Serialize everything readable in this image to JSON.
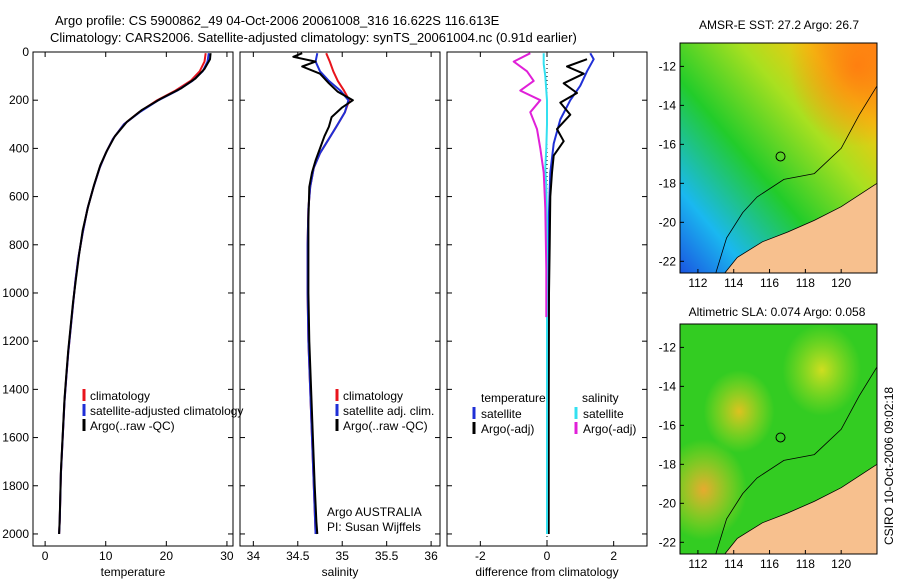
{
  "header": {
    "line1": "Argo profile: CS 5900862_49 04-Oct-2006 20061008_316 16.622S 116.613E",
    "line2": "Climatology: CARS2006. Satellite-adjusted climatology: synTS_20061004.nc (0.91d earlier)"
  },
  "side_note": "CSIRO 10-Oct-2006 09:02:18",
  "colors": {
    "red": "#e8141c",
    "blue": "#1f2fd6",
    "black": "#000000",
    "cyan": "#33e0f0",
    "magenta": "#e020d8",
    "land": "#f7c08e",
    "marker": "#000000"
  },
  "chart_data": [
    {
      "id": "temperature",
      "type": "line",
      "xlabel": "temperature",
      "xlim": [
        -2,
        31
      ],
      "ylim": [
        2050,
        0
      ],
      "xticks": [
        0,
        10,
        20,
        30
      ],
      "yticks": [
        0,
        200,
        400,
        600,
        800,
        1000,
        1200,
        1400,
        1600,
        1800,
        2000
      ],
      "legend": [
        "climatology",
        "satellite-adjusted climatology",
        "Argo(..raw -QC)"
      ],
      "series": [
        {
          "name": "climatology",
          "color": "red",
          "points": [
            [
              26.5,
              5
            ],
            [
              26.3,
              40
            ],
            [
              25.5,
              80
            ],
            [
              24,
              120
            ],
            [
              21.5,
              160
            ],
            [
              18.5,
              200
            ],
            [
              15.5,
              250
            ],
            [
              13,
              300
            ],
            [
              11.2,
              360
            ],
            [
              10,
              420
            ],
            [
              9,
              480
            ],
            [
              8,
              560
            ],
            [
              7,
              650
            ],
            [
              6.2,
              750
            ],
            [
              5.5,
              850
            ],
            [
              5,
              950
            ],
            [
              4.6,
              1050
            ],
            [
              4.2,
              1150
            ],
            [
              3.8,
              1250
            ],
            [
              3.5,
              1350
            ],
            [
              3.2,
              1450
            ],
            [
              3,
              1550
            ],
            [
              2.8,
              1650
            ],
            [
              2.6,
              1750
            ],
            [
              2.5,
              1850
            ],
            [
              2.4,
              1950
            ],
            [
              2.3,
              2000
            ]
          ]
        },
        {
          "name": "satellite-adjusted climatology",
          "color": "blue",
          "points": [
            [
              27,
              5
            ],
            [
              26.8,
              40
            ],
            [
              26,
              80
            ],
            [
              24.3,
              120
            ],
            [
              21.8,
              160
            ],
            [
              18.7,
              200
            ],
            [
              15.6,
              250
            ],
            [
              13,
              300
            ],
            [
              11.2,
              360
            ],
            [
              10,
              420
            ],
            [
              9,
              480
            ],
            [
              8,
              560
            ],
            [
              7,
              650
            ],
            [
              6.2,
              750
            ],
            [
              5.5,
              850
            ],
            [
              5,
              950
            ],
            [
              4.6,
              1050
            ],
            [
              4.2,
              1150
            ],
            [
              3.8,
              1250
            ],
            [
              3.5,
              1350
            ],
            [
              3.2,
              1450
            ],
            [
              3,
              1550
            ],
            [
              2.8,
              1650
            ],
            [
              2.6,
              1750
            ],
            [
              2.5,
              1850
            ],
            [
              2.4,
              1950
            ],
            [
              2.3,
              2000
            ]
          ]
        },
        {
          "name": "Argo(..raw -QC)",
          "color": "black",
          "points": [
            [
              27.3,
              5
            ],
            [
              27.2,
              30
            ],
            [
              26.3,
              70
            ],
            [
              24.8,
              110
            ],
            [
              22.5,
              150
            ],
            [
              19,
              195
            ],
            [
              16,
              240
            ],
            [
              13.5,
              290
            ],
            [
              11.5,
              350
            ],
            [
              10.2,
              410
            ],
            [
              9.1,
              470
            ],
            [
              8.1,
              550
            ],
            [
              7.1,
              640
            ],
            [
              6.2,
              740
            ],
            [
              5.6,
              840
            ],
            [
              5.1,
              940
            ],
            [
              4.6,
              1040
            ],
            [
              4.2,
              1140
            ],
            [
              3.8,
              1240
            ],
            [
              3.5,
              1340
            ],
            [
              3.2,
              1440
            ],
            [
              3,
              1540
            ],
            [
              2.8,
              1640
            ],
            [
              2.6,
              1740
            ],
            [
              2.5,
              1840
            ],
            [
              2.4,
              1940
            ],
            [
              2.3,
              2000
            ]
          ]
        }
      ]
    },
    {
      "id": "salinity",
      "type": "line",
      "xlabel": "salinity",
      "xlim": [
        33.85,
        36.1
      ],
      "ylim": [
        2050,
        0
      ],
      "xticks": [
        34,
        34.5,
        35,
        35.5,
        36
      ],
      "yticks": [
        0,
        200,
        400,
        600,
        800,
        1000,
        1200,
        1400,
        1600,
        1800,
        2000
      ],
      "legend": [
        "climatology",
        "satellite adj. clim.",
        "Argo(..raw -QC)"
      ],
      "notes": [
        "Argo AUSTRALIA",
        "PI: Susan Wijffels"
      ],
      "series": [
        {
          "name": "climatology",
          "color": "red",
          "points": [
            [
              34.82,
              5
            ],
            [
              34.86,
              40
            ],
            [
              34.9,
              80
            ],
            [
              34.95,
              120
            ],
            [
              35.02,
              160
            ],
            [
              35.08,
              200
            ],
            [
              35.03,
              250
            ],
            [
              34.95,
              300
            ],
            [
              34.85,
              360
            ],
            [
              34.75,
              420
            ],
            [
              34.68,
              480
            ],
            [
              34.64,
              560
            ],
            [
              34.62,
              650
            ],
            [
              34.61,
              800
            ],
            [
              34.61,
              1000
            ],
            [
              34.62,
              1200
            ],
            [
              34.64,
              1400
            ],
            [
              34.66,
              1600
            ],
            [
              34.68,
              1800
            ],
            [
              34.7,
              2000
            ]
          ]
        },
        {
          "name": "satellite adj. clim.",
          "color": "blue",
          "points": [
            [
              34.72,
              5
            ],
            [
              34.7,
              40
            ],
            [
              34.75,
              80
            ],
            [
              34.85,
              120
            ],
            [
              34.98,
              160
            ],
            [
              35.07,
              200
            ],
            [
              35.03,
              250
            ],
            [
              34.95,
              300
            ],
            [
              34.85,
              360
            ],
            [
              34.75,
              420
            ],
            [
              34.68,
              480
            ],
            [
              34.64,
              560
            ],
            [
              34.62,
              650
            ],
            [
              34.61,
              800
            ],
            [
              34.61,
              1000
            ],
            [
              34.62,
              1200
            ],
            [
              34.64,
              1400
            ],
            [
              34.66,
              1600
            ],
            [
              34.68,
              1800
            ],
            [
              34.7,
              2000
            ]
          ]
        },
        {
          "name": "Argo(..raw -QC)",
          "color": "black",
          "points": [
            [
              34.55,
              5
            ],
            [
              34.45,
              20
            ],
            [
              34.7,
              40
            ],
            [
              34.55,
              60
            ],
            [
              34.75,
              90
            ],
            [
              34.85,
              130
            ],
            [
              34.95,
              165
            ],
            [
              35.12,
              200
            ],
            [
              35,
              230
            ],
            [
              34.88,
              270
            ],
            [
              34.85,
              310
            ],
            [
              34.8,
              350
            ],
            [
              34.75,
              400
            ],
            [
              34.7,
              450
            ],
            [
              34.66,
              500
            ],
            [
              34.63,
              560
            ],
            [
              34.62,
              700
            ],
            [
              34.62,
              1000
            ],
            [
              34.63,
              1200
            ],
            [
              34.65,
              1400
            ],
            [
              34.67,
              1600
            ],
            [
              34.69,
              1800
            ],
            [
              34.71,
              1950
            ],
            [
              34.72,
              2000
            ]
          ]
        }
      ]
    },
    {
      "id": "difference",
      "type": "line",
      "xlabel": "difference from climatology",
      "xlim": [
        -3,
        3
      ],
      "ylim": [
        2050,
        0
      ],
      "xticks": [
        -2,
        0,
        2
      ],
      "yticks": [
        0,
        200,
        400,
        600,
        800,
        1000,
        1200,
        1400,
        1600,
        1800,
        2000
      ],
      "legend_titles": [
        "temperature",
        "salinity"
      ],
      "legend": [
        "satellite",
        "Argo(-adj)",
        "satellite",
        "Argo(-adj)"
      ],
      "series": [
        {
          "name": "temperature satellite",
          "color": "blue",
          "points": [
            [
              1.3,
              5
            ],
            [
              1.4,
              30
            ],
            [
              1.2,
              80
            ],
            [
              1,
              140
            ],
            [
              0.7,
              200
            ],
            [
              0.4,
              280
            ],
            [
              0.2,
              380
            ],
            [
              0.1,
              500
            ],
            [
              0.05,
              700
            ],
            [
              0.03,
              1000
            ],
            [
              0.02,
              1500
            ],
            [
              0.01,
              2000
            ]
          ]
        },
        {
          "name": "temperature Argo(-adj)",
          "color": "black",
          "points": [
            [
              1.2,
              30
            ],
            [
              0.6,
              60
            ],
            [
              1.1,
              90
            ],
            [
              0.5,
              130
            ],
            [
              0.9,
              170
            ],
            [
              0.4,
              210
            ],
            [
              0.7,
              260
            ],
            [
              0.3,
              320
            ],
            [
              0.5,
              370
            ],
            [
              0.2,
              430
            ],
            [
              0.15,
              500
            ],
            [
              0.1,
              600
            ],
            [
              0.08,
              800
            ],
            [
              0.06,
              1000
            ],
            [
              0.05,
              1500
            ],
            [
              0.05,
              2000
            ]
          ]
        },
        {
          "name": "salinity satellite",
          "color": "cyan",
          "points": [
            [
              -0.1,
              5
            ],
            [
              -0.1,
              50
            ],
            [
              -0.05,
              100
            ],
            [
              -0.02,
              160
            ],
            [
              0,
              200
            ],
            [
              0,
              300
            ],
            [
              -0.02,
              400
            ],
            [
              -0.05,
              480
            ],
            [
              -0.02,
              560
            ],
            [
              0,
              700
            ],
            [
              0,
              1000
            ],
            [
              0,
              1500
            ],
            [
              0,
              2000
            ]
          ]
        },
        {
          "name": "salinity Argo(-adj)",
          "color": "magenta",
          "points": [
            [
              -0.5,
              5
            ],
            [
              -1,
              40
            ],
            [
              -0.6,
              80
            ],
            [
              -0.4,
              120
            ],
            [
              -0.8,
              160
            ],
            [
              -0.2,
              200
            ],
            [
              -0.5,
              250
            ],
            [
              -0.3,
              320
            ],
            [
              -0.2,
              400
            ],
            [
              -0.1,
              500
            ],
            [
              -0.05,
              650
            ],
            [
              -0.02,
              900
            ],
            [
              -0.02,
              1100
            ]
          ]
        }
      ]
    },
    {
      "id": "sst_map",
      "type": "heatmap",
      "title": "AMSR-E SST: 27.2 Argo: 26.7",
      "xlim": [
        111,
        122
      ],
      "ylim": [
        -22.6,
        -10.8
      ],
      "xticks": [
        112,
        114,
        116,
        118,
        120
      ],
      "yticks": [
        -12,
        -14,
        -16,
        -18,
        -20,
        -22
      ],
      "marker": [
        116.613,
        -16.622
      ],
      "coastline": [
        [
          122,
          -18
        ],
        [
          120,
          -19.2
        ],
        [
          118.5,
          -19.9
        ],
        [
          117,
          -20.5
        ],
        [
          115.6,
          -21
        ],
        [
          114.2,
          -21.8
        ],
        [
          113.5,
          -22.6
        ]
      ],
      "isobath": [
        [
          122,
          -13
        ],
        [
          121,
          -14.5
        ],
        [
          120,
          -16.2
        ],
        [
          118.5,
          -17.5
        ],
        [
          116.8,
          -17.8
        ],
        [
          115.3,
          -18.7
        ],
        [
          114.5,
          -19.5
        ],
        [
          113.6,
          -20.8
        ],
        [
          113,
          -22.6
        ]
      ]
    },
    {
      "id": "sla_map",
      "type": "heatmap",
      "title": "Altimetric SLA: 0.074 Argo: 0.058",
      "xlim": [
        111,
        122
      ],
      "ylim": [
        -22.6,
        -10.8
      ],
      "xticks": [
        112,
        114,
        116,
        118,
        120
      ],
      "yticks": [
        -12,
        -14,
        -16,
        -18,
        -20,
        -22
      ],
      "marker": [
        116.613,
        -16.622
      ],
      "coastline": [
        [
          122,
          -18
        ],
        [
          120,
          -19.2
        ],
        [
          118.5,
          -19.9
        ],
        [
          117,
          -20.5
        ],
        [
          115.6,
          -21
        ],
        [
          114.2,
          -21.8
        ],
        [
          113.5,
          -22.6
        ]
      ],
      "isobath": [
        [
          122,
          -13
        ],
        [
          121,
          -14.5
        ],
        [
          120,
          -16.2
        ],
        [
          118.5,
          -17.5
        ],
        [
          116.8,
          -17.8
        ],
        [
          115.3,
          -18.7
        ],
        [
          114.5,
          -19.5
        ],
        [
          113.6,
          -20.8
        ],
        [
          113,
          -22.6
        ]
      ]
    }
  ]
}
